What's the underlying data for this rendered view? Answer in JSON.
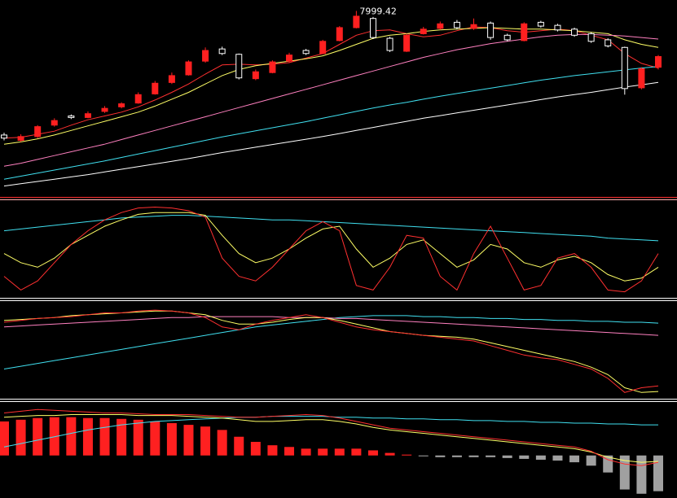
{
  "chart_data": [
    {
      "type": "candlestick",
      "up_color": "#ff2020",
      "down_color": "#ffffff",
      "ylim": [
        5600,
        8100
      ],
      "categories": [
        null,
        null,
        null,
        null,
        null,
        null,
        null,
        null,
        null,
        null,
        null,
        null,
        null,
        null,
        null,
        null,
        null,
        null,
        null,
        null,
        null,
        null,
        null,
        null,
        null,
        null,
        null,
        null,
        null,
        null,
        null,
        null,
        null,
        null,
        null,
        null,
        null,
        null,
        null,
        null
      ],
      "open": [
        6370,
        6300,
        6350,
        6500,
        6620,
        6600,
        6680,
        6740,
        6790,
        6910,
        7060,
        7160,
        7340,
        7500,
        7430,
        7110,
        7190,
        7340,
        7480,
        7440,
        7610,
        7780,
        7900,
        7640,
        7470,
        7700,
        7770,
        7850,
        7770,
        7840,
        7680,
        7610,
        7850,
        7810,
        7760,
        7700,
        7620,
        7520,
        6990,
        7260
      ],
      "high": [
        6400,
        6380,
        6500,
        6590,
        6640,
        6680,
        6750,
        6800,
        6930,
        7080,
        7190,
        7350,
        7520,
        7530,
        7440,
        7230,
        7350,
        7450,
        7500,
        7620,
        7800,
        7999.42,
        7920,
        7660,
        7700,
        7790,
        7860,
        7880,
        7900,
        7860,
        7700,
        7850,
        7870,
        7830,
        7780,
        7720,
        7640,
        7530,
        7260,
        7420
      ],
      "low": [
        6300,
        6280,
        6330,
        6480,
        6580,
        6590,
        6660,
        6720,
        6780,
        6900,
        7040,
        7150,
        7320,
        7420,
        7100,
        7090,
        7180,
        7320,
        7420,
        7430,
        7600,
        7770,
        7630,
        7460,
        7460,
        7690,
        7750,
        7760,
        7750,
        7620,
        7600,
        7600,
        7780,
        7730,
        7660,
        7580,
        7520,
        6900,
        6970,
        7230
      ],
      "close": [
        6330,
        6350,
        6480,
        6560,
        6600,
        6650,
        6720,
        6780,
        6900,
        7050,
        7150,
        7330,
        7480,
        7440,
        7120,
        7200,
        7330,
        7420,
        7440,
        7600,
        7780,
        7930,
        7650,
        7480,
        7680,
        7760,
        7830,
        7780,
        7820,
        7650,
        7620,
        7830,
        7800,
        7750,
        7680,
        7600,
        7540,
        6980,
        7240,
        7400
      ],
      "series": [
        {
          "color": "#ff3030",
          "values": [
            6330,
            6340,
            6380,
            6420,
            6500,
            6570,
            6620,
            6670,
            6740,
            6830,
            6930,
            7040,
            7170,
            7290,
            7300,
            7290,
            7300,
            7320,
            7380,
            7440,
            7560,
            7680,
            7740,
            7750,
            7700,
            7660,
            7680,
            7740,
            7790,
            7780,
            7740,
            7720,
            7740,
            7760,
            7740,
            7680,
            7620,
            7440,
            7310,
            7250
          ]
        },
        {
          "color": "#ffff66",
          "values": [
            6250,
            6280,
            6320,
            6370,
            6430,
            6490,
            6550,
            6610,
            6670,
            6750,
            6840,
            6930,
            7040,
            7150,
            7230,
            7280,
            7310,
            7340,
            7370,
            7410,
            7480,
            7560,
            7640,
            7680,
            7700,
            7730,
            7750,
            7760,
            7770,
            7780,
            7770,
            7760,
            7760,
            7750,
            7740,
            7720,
            7700,
            7620,
            7560,
            7520
          ]
        },
        {
          "color": "#ff80c0",
          "values": [
            5960,
            6000,
            6050,
            6100,
            6150,
            6200,
            6250,
            6310,
            6370,
            6430,
            6490,
            6550,
            6610,
            6670,
            6730,
            6790,
            6850,
            6910,
            6970,
            7030,
            7090,
            7150,
            7210,
            7270,
            7330,
            7390,
            7440,
            7490,
            7530,
            7570,
            7600,
            7630,
            7660,
            7680,
            7690,
            7690,
            7680,
            7670,
            7650,
            7630
          ]
        },
        {
          "color": "#40e0f0",
          "values": [
            5790,
            5830,
            5870,
            5910,
            5950,
            5990,
            6030,
            6075,
            6120,
            6165,
            6210,
            6255,
            6300,
            6345,
            6385,
            6425,
            6465,
            6505,
            6545,
            6590,
            6635,
            6680,
            6725,
            6765,
            6800,
            6840,
            6880,
            6915,
            6950,
            6985,
            7020,
            7055,
            7090,
            7120,
            7150,
            7175,
            7200,
            7225,
            7250,
            7270
          ]
        },
        {
          "color": "#ffffff",
          "values": [
            5700,
            5730,
            5760,
            5790,
            5820,
            5850,
            5885,
            5920,
            5955,
            5990,
            6025,
            6060,
            6100,
            6140,
            6175,
            6210,
            6245,
            6280,
            6315,
            6350,
            6390,
            6430,
            6470,
            6510,
            6550,
            6590,
            6625,
            6660,
            6695,
            6730,
            6765,
            6800,
            6835,
            6870,
            6900,
            6930,
            6965,
            7000,
            7030,
            7060
          ]
        }
      ]
    },
    {
      "type": "line",
      "ylim": [
        0,
        100
      ],
      "categories": [
        null,
        null,
        null,
        null,
        null,
        null,
        null,
        null,
        null,
        null,
        null,
        null,
        null,
        null,
        null,
        null,
        null,
        null,
        null,
        null,
        null,
        null,
        null,
        null,
        null,
        null,
        null,
        null,
        null,
        null,
        null,
        null,
        null,
        null,
        null,
        null,
        null,
        null,
        null,
        null
      ],
      "series": [
        {
          "color": "#40e0f0",
          "values": [
            70,
            72,
            74,
            76,
            78,
            80,
            82,
            84,
            85,
            86,
            87,
            87,
            86,
            85,
            84,
            83,
            82,
            82,
            81,
            80,
            79,
            78,
            77,
            76,
            75,
            74,
            73,
            72,
            71,
            70,
            69,
            68,
            67,
            66,
            65,
            64,
            62,
            61,
            60,
            59
          ]
        },
        {
          "color": "#ffff66",
          "values": [
            45,
            35,
            30,
            40,
            55,
            65,
            75,
            82,
            88,
            90,
            90,
            90,
            87,
            65,
            45,
            35,
            40,
            50,
            62,
            72,
            75,
            50,
            30,
            40,
            55,
            60,
            45,
            30,
            38,
            55,
            50,
            35,
            30,
            38,
            42,
            35,
            22,
            15,
            18,
            30
          ]
        },
        {
          "color": "#ff3030",
          "values": [
            20,
            5,
            15,
            35,
            55,
            70,
            82,
            90,
            95,
            96,
            95,
            92,
            85,
            40,
            20,
            15,
            30,
            50,
            70,
            80,
            70,
            10,
            5,
            30,
            65,
            62,
            20,
            5,
            45,
            75,
            40,
            5,
            10,
            40,
            45,
            30,
            5,
            3,
            15,
            45
          ]
        }
      ]
    },
    {
      "type": "line",
      "ylim": [
        0,
        100
      ],
      "categories": [
        null,
        null,
        null,
        null,
        null,
        null,
        null,
        null,
        null,
        null,
        null,
        null,
        null,
        null,
        null,
        null,
        null,
        null,
        null,
        null,
        null,
        null,
        null,
        null,
        null,
        null,
        null,
        null,
        null,
        null,
        null,
        null,
        null,
        null,
        null,
        null,
        null,
        null,
        null,
        null
      ],
      "series": [
        {
          "color": "#40e0f0",
          "values": [
            30,
            33,
            36,
            39,
            42,
            45,
            48,
            51,
            54,
            57,
            60,
            63,
            66,
            69,
            72,
            75,
            77,
            79,
            81,
            83,
            85,
            86,
            87,
            87,
            87,
            86,
            86,
            85,
            85,
            84,
            84,
            83,
            83,
            82,
            82,
            81,
            81,
            80,
            80,
            79
          ]
        },
        {
          "color": "#ff80c0",
          "values": [
            75,
            76,
            77,
            78,
            79,
            80,
            81,
            82,
            83,
            84,
            85,
            85,
            86,
            86,
            86,
            86,
            86,
            85,
            85,
            85,
            84,
            84,
            83,
            82,
            81,
            80,
            79,
            78,
            77,
            76,
            75,
            74,
            73,
            72,
            71,
            70,
            69,
            68,
            67,
            66
          ]
        },
        {
          "color": "#ffff66",
          "values": [
            82,
            83,
            84,
            85,
            87,
            88,
            89,
            90,
            91,
            92,
            92,
            90,
            88,
            82,
            78,
            78,
            80,
            83,
            85,
            85,
            82,
            78,
            74,
            70,
            68,
            66,
            65,
            64,
            62,
            58,
            54,
            50,
            46,
            42,
            38,
            32,
            24,
            10,
            5,
            6
          ]
        },
        {
          "color": "#ff3030",
          "values": [
            80,
            82,
            84,
            85,
            86,
            88,
            90,
            90,
            92,
            93,
            92,
            90,
            85,
            75,
            72,
            78,
            82,
            85,
            88,
            85,
            80,
            75,
            72,
            70,
            68,
            66,
            64,
            62,
            60,
            55,
            50,
            45,
            42,
            40,
            35,
            30,
            20,
            5,
            10,
            12
          ]
        }
      ]
    },
    {
      "type": "bar",
      "color": "#ff2020",
      "negative_color": "#a0a0a0",
      "ylim": [
        -50,
        60
      ],
      "categories": [
        null,
        null,
        null,
        null,
        null,
        null,
        null,
        null,
        null,
        null,
        null,
        null,
        null,
        null,
        null,
        null,
        null,
        null,
        null,
        null,
        null,
        null,
        null,
        null,
        null,
        null,
        null,
        null,
        null,
        null,
        null,
        null,
        null,
        null,
        null,
        null,
        null,
        null,
        null,
        null
      ],
      "values": [
        40,
        42,
        44,
        45,
        45,
        44,
        44,
        43,
        42,
        40,
        38,
        36,
        34,
        30,
        22,
        16,
        12,
        10,
        8,
        8,
        8,
        8,
        6,
        3,
        1,
        -1,
        -2,
        -2,
        -2,
        -2,
        -3,
        -4,
        -5,
        -6,
        -8,
        -12,
        -20,
        -40,
        -45,
        -42
      ],
      "series": [
        {
          "color": "#40e0f0",
          "values": [
            10,
            14,
            18,
            22,
            26,
            30,
            33,
            36,
            38,
            40,
            41,
            42,
            43,
            44,
            45,
            45,
            46,
            46,
            46,
            46,
            45,
            45,
            44,
            44,
            43,
            43,
            42,
            42,
            41,
            41,
            40,
            40,
            39,
            39,
            38,
            38,
            37,
            37,
            36,
            36
          ]
        },
        {
          "color": "#ffff66",
          "values": [
            45,
            46,
            47,
            47,
            48,
            48,
            48,
            48,
            47,
            47,
            47,
            46,
            45,
            44,
            42,
            40,
            40,
            41,
            42,
            42,
            40,
            37,
            33,
            30,
            28,
            26,
            24,
            22,
            20,
            18,
            16,
            14,
            12,
            10,
            8,
            4,
            -2,
            -6,
            -8,
            -7
          ]
        },
        {
          "color": "#ff3030",
          "values": [
            50,
            52,
            54,
            53,
            52,
            51,
            50,
            50,
            49,
            48,
            48,
            48,
            47,
            46,
            45,
            45,
            46,
            47,
            48,
            47,
            44,
            40,
            36,
            32,
            30,
            28,
            26,
            24,
            22,
            20,
            18,
            16,
            14,
            12,
            10,
            5,
            -5,
            -10,
            -12,
            -8
          ]
        }
      ]
    }
  ]
}
